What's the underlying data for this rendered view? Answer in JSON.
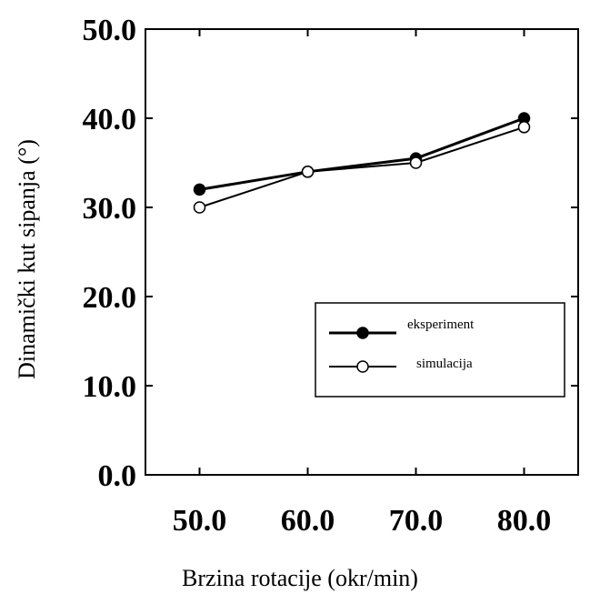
{
  "chart_data": {
    "type": "line",
    "x": [
      50.0,
      60.0,
      70.0,
      80.0
    ],
    "series": [
      {
        "name": "eksperiment",
        "values": [
          32.0,
          34.0,
          35.5,
          40.0
        ],
        "marker": "filled-circle",
        "color": "#000000"
      },
      {
        "name": "simulacija",
        "values": [
          30.0,
          34.0,
          35.0,
          39.0
        ],
        "marker": "open-circle",
        "color": "#000000"
      }
    ],
    "xlim": [
      45.0,
      85.0
    ],
    "ylim": [
      0.0,
      50.0
    ],
    "x_ticks": [
      "50.0",
      "60.0",
      "70.0",
      "80.0"
    ],
    "y_ticks": [
      "0.0",
      "10.0",
      "20.0",
      "30.0",
      "40.0",
      "50.0"
    ],
    "xlabel": "Brzina rotacije (okr/min)",
    "ylabel": "Dinamički kut sipanja (°)",
    "title": "",
    "grid": false,
    "legend_position": "lower-right"
  }
}
